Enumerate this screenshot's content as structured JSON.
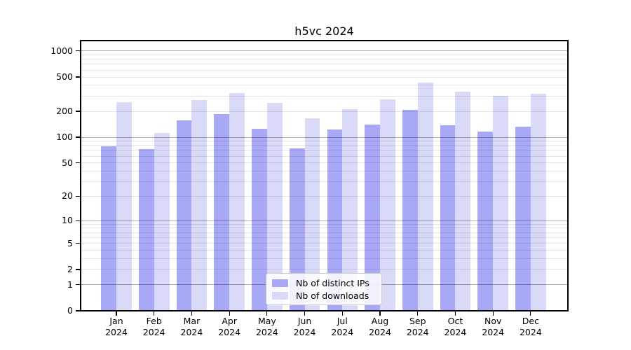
{
  "title": "h5vc 2024",
  "chart_data": {
    "type": "bar",
    "title": "h5vc 2024",
    "categories": [
      "Jan",
      "Feb",
      "Mar",
      "Apr",
      "May",
      "Jun",
      "Jul",
      "Aug",
      "Sep",
      "Oct",
      "Nov",
      "Dec"
    ],
    "year": "2024",
    "series": [
      {
        "name": "Nb of distinct IPs",
        "color": "#a8a8f6",
        "values": [
          78,
          73,
          156,
          186,
          125,
          74,
          122,
          141,
          208,
          139,
          116,
          132
        ]
      },
      {
        "name": "Nb of downloads",
        "color": "#d9d9f8",
        "values": [
          256,
          112,
          270,
          325,
          249,
          165,
          210,
          273,
          430,
          340,
          300,
          317
        ]
      }
    ],
    "y_axis": {
      "scale": "log10(1+v)",
      "labeled_ticks": [
        0,
        1,
        2,
        5,
        10,
        20,
        50,
        100,
        200,
        500,
        1000
      ],
      "light_gridlines": [
        2,
        3,
        4,
        5,
        6,
        7,
        8,
        9,
        20,
        30,
        40,
        50,
        60,
        70,
        80,
        90,
        200,
        300,
        400,
        500,
        600,
        700,
        800,
        900
      ],
      "dark_gridlines": [
        1,
        10,
        100,
        1000
      ],
      "ylim": [
        0,
        1320
      ]
    },
    "xlabel": "",
    "ylabel": "",
    "grid": true,
    "legend_position": "lower center"
  },
  "legend": {
    "items": [
      "Nb of distinct IPs",
      "Nb of downloads"
    ]
  }
}
